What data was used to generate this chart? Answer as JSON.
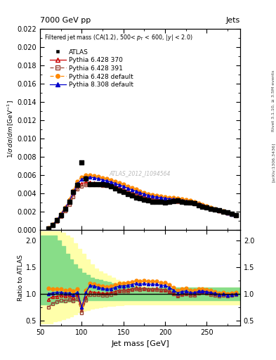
{
  "title_top": "7000 GeV pp",
  "title_right": "Jets",
  "watermark": "ATLAS_2012_I1094564",
  "xlabel": "Jet mass [GeV]",
  "ylabel_main": "1/σ dσ/dm [GeV⁻¹]",
  "ylabel_ratio": "Ratio to ATLAS",
  "right_label": "Rivet 3.1.10, ≥ 3.5M events",
  "right_label2": "[arXiv:1306.3436]",
  "xlim": [
    50,
    290
  ],
  "ylim_main": [
    0,
    0.022
  ],
  "ylim_ratio": [
    0.4,
    2.2
  ],
  "atlas_x": [
    60,
    65,
    70,
    75,
    80,
    85,
    90,
    95,
    100,
    105,
    110,
    115,
    120,
    125,
    130,
    135,
    140,
    145,
    150,
    155,
    160,
    165,
    170,
    175,
    180,
    185,
    190,
    195,
    200,
    205,
    210,
    215,
    220,
    225,
    230,
    235,
    240,
    245,
    250,
    255,
    260,
    265,
    270,
    275,
    280,
    285
  ],
  "atlas_y": [
    0.0002,
    0.00055,
    0.00105,
    0.00165,
    0.00235,
    0.0031,
    0.00415,
    0.0049,
    0.0074,
    0.0056,
    0.005,
    0.005,
    0.005,
    0.005,
    0.00495,
    0.0048,
    0.00455,
    0.0043,
    0.00415,
    0.00395,
    0.00375,
    0.00355,
    0.00345,
    0.0033,
    0.0032,
    0.0031,
    0.00305,
    0.00305,
    0.003,
    0.00305,
    0.00315,
    0.00325,
    0.0031,
    0.003,
    0.003,
    0.0029,
    0.0027,
    0.00255,
    0.00245,
    0.00235,
    0.00225,
    0.00215,
    0.002,
    0.0019,
    0.00175,
    0.0016
  ],
  "py6_370_x": [
    60,
    65,
    70,
    75,
    80,
    85,
    90,
    95,
    100,
    105,
    110,
    115,
    120,
    125,
    130,
    135,
    140,
    145,
    150,
    155,
    160,
    165,
    170,
    175,
    180,
    185,
    190,
    195,
    200,
    205,
    210,
    215,
    220,
    225,
    230,
    235,
    240,
    245,
    250,
    255,
    260,
    265,
    270,
    275,
    280,
    285
  ],
  "py6_370_y": [
    0.00018,
    0.00052,
    0.001,
    0.0016,
    0.00225,
    0.003,
    0.0039,
    0.0048,
    0.0051,
    0.0052,
    0.0052,
    0.00515,
    0.0051,
    0.00505,
    0.005,
    0.0049,
    0.00475,
    0.0046,
    0.00445,
    0.00425,
    0.0041,
    0.00395,
    0.0038,
    0.00365,
    0.0035,
    0.0034,
    0.00335,
    0.0033,
    0.00325,
    0.0032,
    0.00318,
    0.00315,
    0.0031,
    0.00305,
    0.00298,
    0.0029,
    0.00278,
    0.00265,
    0.00252,
    0.00238,
    0.00225,
    0.00212,
    0.002,
    0.00188,
    0.00175,
    0.00162
  ],
  "py6_391_x": [
    60,
    65,
    70,
    75,
    80,
    85,
    90,
    95,
    100,
    105,
    110,
    115,
    120,
    125,
    130,
    135,
    140,
    145,
    150,
    155,
    160,
    165,
    170,
    175,
    180,
    185,
    190,
    195,
    200,
    205,
    210,
    215,
    220,
    225,
    230,
    235,
    240,
    245,
    250,
    255,
    260,
    265,
    270,
    275,
    280,
    285
  ],
  "py6_391_y": [
    0.00015,
    0.00045,
    0.0009,
    0.00145,
    0.00205,
    0.00275,
    0.0036,
    0.00445,
    0.0048,
    0.0049,
    0.00495,
    0.00495,
    0.00492,
    0.00488,
    0.00482,
    0.00475,
    0.00462,
    0.0045,
    0.00435,
    0.00418,
    0.00402,
    0.00388,
    0.00374,
    0.0036,
    0.00347,
    0.00336,
    0.0033,
    0.00326,
    0.0032,
    0.00315,
    0.00313,
    0.0031,
    0.00305,
    0.00299,
    0.00292,
    0.00283,
    0.00272,
    0.0026,
    0.00247,
    0.00233,
    0.0022,
    0.00207,
    0.00194,
    0.00182,
    0.0017,
    0.00158
  ],
  "py6_def_x": [
    60,
    65,
    70,
    75,
    80,
    85,
    90,
    95,
    100,
    105,
    110,
    115,
    120,
    125,
    130,
    135,
    140,
    145,
    150,
    155,
    160,
    165,
    170,
    175,
    180,
    185,
    190,
    195,
    200,
    205,
    210,
    215,
    220,
    225,
    230,
    235,
    240,
    245,
    250,
    255,
    260,
    265,
    270,
    275,
    280,
    285
  ],
  "py6_def_y": [
    0.00022,
    0.0006,
    0.00115,
    0.0018,
    0.0025,
    0.00335,
    0.00435,
    0.00535,
    0.0058,
    0.006,
    0.006,
    0.00592,
    0.00582,
    0.0057,
    0.0056,
    0.00548,
    0.00532,
    0.00515,
    0.00498,
    0.00478,
    0.0046,
    0.00443,
    0.00427,
    0.00411,
    0.00396,
    0.00384,
    0.00377,
    0.0037,
    0.00363,
    0.00358,
    0.00352,
    0.00346,
    0.00338,
    0.0033,
    0.0032,
    0.00308,
    0.00295,
    0.0028,
    0.00265,
    0.00249,
    0.00234,
    0.00219,
    0.00205,
    0.00191,
    0.00178,
    0.00165
  ],
  "py8_def_x": [
    60,
    65,
    70,
    75,
    80,
    85,
    90,
    95,
    100,
    105,
    110,
    115,
    120,
    125,
    130,
    135,
    140,
    145,
    150,
    155,
    160,
    165,
    170,
    175,
    180,
    185,
    190,
    195,
    200,
    205,
    210,
    215,
    220,
    225,
    230,
    235,
    240,
    245,
    250,
    255,
    260,
    265,
    270,
    275,
    280,
    285
  ],
  "py8_def_y": [
    0.0002,
    0.00056,
    0.00108,
    0.0017,
    0.00238,
    0.00315,
    0.0041,
    0.00505,
    0.00555,
    0.00575,
    0.00578,
    0.00572,
    0.00562,
    0.0055,
    0.00538,
    0.00525,
    0.0051,
    0.00493,
    0.00477,
    0.00458,
    0.00441,
    0.00424,
    0.00408,
    0.00393,
    0.00378,
    0.00367,
    0.0036,
    0.00354,
    0.00348,
    0.00342,
    0.00337,
    0.00331,
    0.00324,
    0.00316,
    0.00307,
    0.00296,
    0.00283,
    0.00269,
    0.00255,
    0.00241,
    0.00227,
    0.00213,
    0.00199,
    0.00186,
    0.00173,
    0.0016
  ],
  "band_x": [
    50,
    60,
    65,
    70,
    75,
    80,
    85,
    90,
    95,
    100,
    105,
    110,
    115,
    120,
    125,
    130,
    135,
    140,
    145,
    150,
    155,
    160,
    165,
    170,
    175,
    180,
    185,
    190,
    195,
    200,
    205,
    210,
    215,
    220,
    225,
    230,
    235,
    240,
    245,
    250,
    255,
    260,
    265,
    270,
    275,
    280,
    285,
    290
  ],
  "green_lo": [
    0.8,
    0.8,
    0.82,
    0.84,
    0.84,
    0.85,
    0.86,
    0.87,
    0.87,
    0.88,
    0.88,
    0.88,
    0.88,
    0.88,
    0.88,
    0.88,
    0.88,
    0.88,
    0.88,
    0.88,
    0.88,
    0.88,
    0.88,
    0.88,
    0.88,
    0.88,
    0.88,
    0.88,
    0.88,
    0.88,
    0.88,
    0.88,
    0.88,
    0.88,
    0.88,
    0.88,
    0.88,
    0.88,
    0.88,
    0.88,
    0.88,
    0.88,
    0.88,
    0.88,
    0.88,
    0.88,
    0.88,
    0.88
  ],
  "green_hi": [
    2.1,
    2.1,
    2.1,
    2.0,
    1.9,
    1.75,
    1.65,
    1.55,
    1.48,
    1.4,
    1.35,
    1.3,
    1.28,
    1.26,
    1.24,
    1.22,
    1.2,
    1.18,
    1.17,
    1.16,
    1.15,
    1.14,
    1.13,
    1.12,
    1.12,
    1.12,
    1.12,
    1.12,
    1.12,
    1.12,
    1.12,
    1.12,
    1.12,
    1.12,
    1.12,
    1.12,
    1.12,
    1.12,
    1.12,
    1.12,
    1.12,
    1.12,
    1.12,
    1.12,
    1.12,
    1.12,
    1.12,
    1.12
  ],
  "yellow_lo": [
    0.45,
    0.45,
    0.48,
    0.5,
    0.52,
    0.55,
    0.58,
    0.62,
    0.65,
    0.68,
    0.7,
    0.72,
    0.74,
    0.75,
    0.76,
    0.77,
    0.78,
    0.79,
    0.79,
    0.8,
    0.8,
    0.8,
    0.8,
    0.8,
    0.8,
    0.8,
    0.8,
    0.8,
    0.8,
    0.8,
    0.8,
    0.8,
    0.8,
    0.8,
    0.8,
    0.8,
    0.8,
    0.8,
    0.8,
    0.8,
    0.8,
    0.8,
    0.8,
    0.8,
    0.8,
    0.8,
    0.8,
    0.8
  ],
  "yellow_hi": [
    2.18,
    2.18,
    2.18,
    2.18,
    2.15,
    2.1,
    2.05,
    1.95,
    1.85,
    1.75,
    1.65,
    1.55,
    1.48,
    1.42,
    1.38,
    1.34,
    1.3,
    1.26,
    1.24,
    1.22,
    1.2,
    1.18,
    1.16,
    1.15,
    1.14,
    1.13,
    1.12,
    1.12,
    1.12,
    1.12,
    1.12,
    1.12,
    1.12,
    1.12,
    1.12,
    1.12,
    1.12,
    1.12,
    1.12,
    1.12,
    1.12,
    1.12,
    1.12,
    1.12,
    1.12,
    1.12,
    1.12,
    1.12
  ],
  "color_py6_370": "#cc0000",
  "color_py6_391": "#994433",
  "color_py6_def": "#ff8800",
  "color_py8_def": "#0000cc",
  "color_atlas": "#000000",
  "color_green": "#88dd88",
  "color_yellow": "#ffffaa"
}
